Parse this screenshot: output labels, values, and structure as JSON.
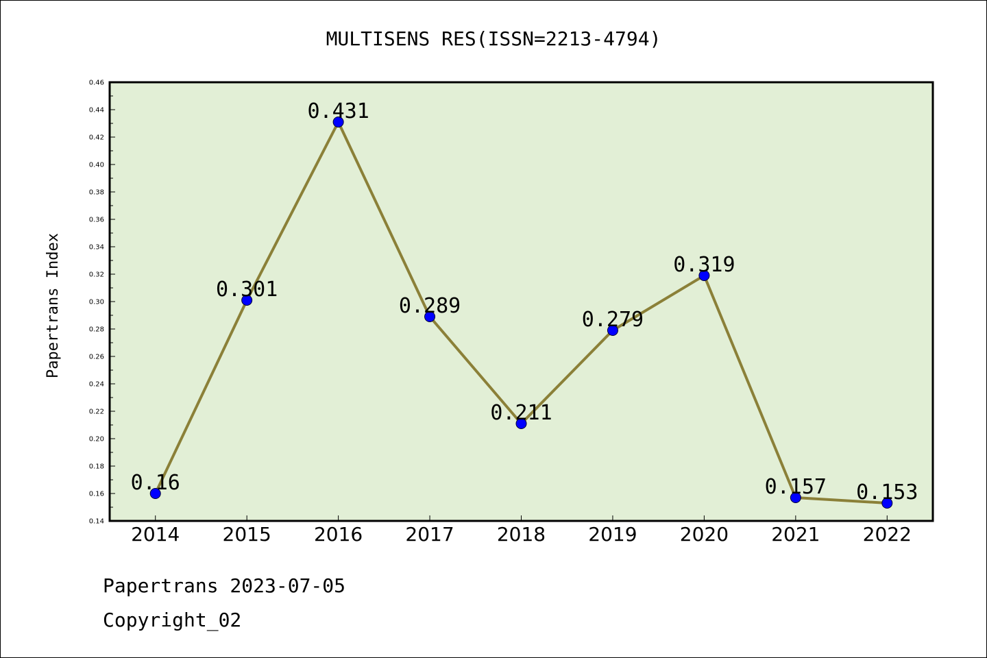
{
  "chart_data": {
    "type": "line",
    "title": "MULTISENS RES(ISSN=2213-4794)",
    "ylabel": "Papertrans Index",
    "xlabel": "",
    "categories": [
      "2014",
      "2015",
      "2016",
      "2017",
      "2018",
      "2019",
      "2020",
      "2021",
      "2022"
    ],
    "values": [
      0.16,
      0.301,
      0.431,
      0.289,
      0.211,
      0.279,
      0.319,
      0.157,
      0.153
    ],
    "data_labels": [
      "0.16",
      "0.301",
      "0.431",
      "0.289",
      "0.211",
      "0.279",
      "0.319",
      "0.157",
      "0.153"
    ],
    "ylim": [
      0.14,
      0.46
    ],
    "ytick_labels": [
      "0.14",
      "0.16",
      "0.18",
      "0.20",
      "0.22",
      "0.24",
      "0.26",
      "0.28",
      "0.30",
      "0.32",
      "0.34",
      "0.36",
      "0.38",
      "0.40",
      "0.42",
      "0.44",
      "0.46"
    ],
    "grid": false,
    "legend": "none",
    "colors": {
      "plot_background": "#e2efd6",
      "line": "#8b8038",
      "marker": "#0000ff"
    }
  },
  "footer": {
    "line1": "Papertrans 2023-07-05",
    "line2": "Copyright_02"
  }
}
